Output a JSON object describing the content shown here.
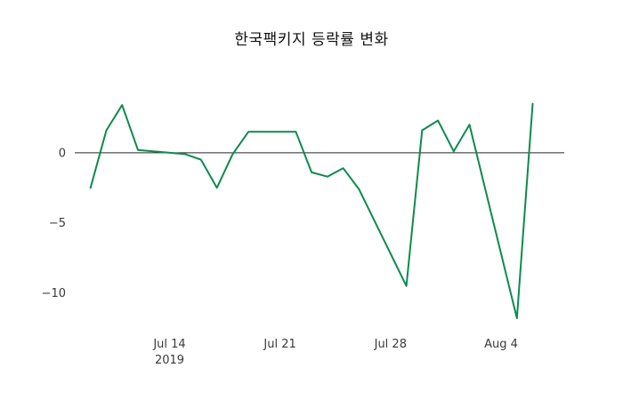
{
  "chart_data": {
    "type": "line",
    "title": "한국팩키지 등락률 변화",
    "xlabel": "",
    "ylabel": "",
    "xlim": [
      "2019-07-08",
      "2019-08-08"
    ],
    "ylim": [
      -12.5,
      5
    ],
    "grid": false,
    "legend_position": "none",
    "background_color": "#ffffff",
    "zero_line": true,
    "zero_line_color": "#262626",
    "series": [
      {
        "name": "한국팩키지 등락률",
        "color": "#0e8a4f",
        "x": [
          "2019-07-09",
          "2019-07-10",
          "2019-07-11",
          "2019-07-12",
          "2019-07-15",
          "2019-07-16",
          "2019-07-17",
          "2019-07-18",
          "2019-07-19",
          "2019-07-22",
          "2019-07-23",
          "2019-07-24",
          "2019-07-25",
          "2019-07-26",
          "2019-07-29",
          "2019-07-30",
          "2019-07-31",
          "2019-08-01",
          "2019-08-02",
          "2019-08-05",
          "2019-08-06"
        ],
        "values": [
          -2.5,
          1.6,
          3.4,
          0.2,
          -0.1,
          -0.5,
          -2.5,
          -0.1,
          1.5,
          1.5,
          -1.4,
          -1.7,
          -1.1,
          -2.6,
          -9.5,
          1.6,
          2.3,
          0.1,
          2.0,
          -11.8,
          3.5
        ]
      }
    ],
    "yticks": [
      {
        "value": 0,
        "label": "0"
      },
      {
        "value": -5,
        "label": "−5"
      },
      {
        "value": -10,
        "label": "−10"
      }
    ],
    "xticks": [
      {
        "date": "2019-07-14",
        "label": "Jul 14",
        "sublabel": "2019"
      },
      {
        "date": "2019-07-21",
        "label": "Jul 21",
        "sublabel": ""
      },
      {
        "date": "2019-07-28",
        "label": "Jul 28",
        "sublabel": ""
      },
      {
        "date": "2019-08-04",
        "label": "Aug 4",
        "sublabel": ""
      }
    ]
  }
}
